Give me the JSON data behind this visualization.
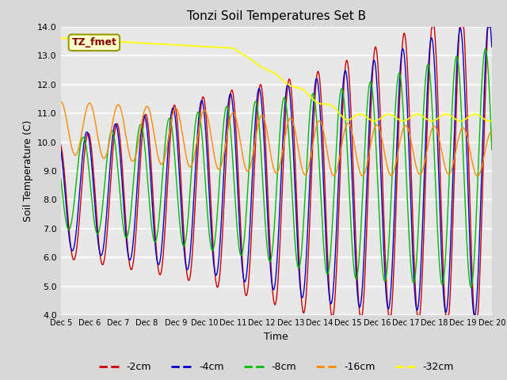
{
  "title": "Tonzi Soil Temperatures Set B",
  "xlabel": "Time",
  "ylabel": "Soil Temperature (C)",
  "ylim": [
    4.0,
    14.0
  ],
  "yticks": [
    4.0,
    5.0,
    6.0,
    7.0,
    8.0,
    9.0,
    10.0,
    11.0,
    12.0,
    13.0,
    14.0
  ],
  "colors": {
    "-2cm": "#cc0000",
    "-4cm": "#0000cc",
    "-8cm": "#00bb00",
    "-16cm": "#ff8800",
    "-32cm": "#ffff00"
  },
  "annotation_label": "TZ_fmet",
  "annotation_bg": "#ffffcc",
  "annotation_fg": "#880000",
  "background_color": "#e8e8e8",
  "plot_bg": "#e8e8e8"
}
